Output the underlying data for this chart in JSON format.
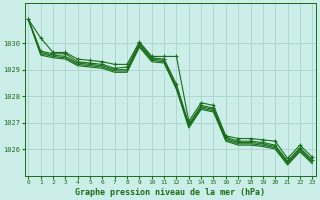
{
  "xlabel": "Graphe pression niveau de la mer (hPa)",
  "bg_color": "#cceee8",
  "grid_color": "#aad4ce",
  "line_color": "#1a6e1a",
  "ylim": [
    1025.0,
    1031.5
  ],
  "xlim": [
    0,
    23
  ],
  "yticks": [
    1026,
    1027,
    1028,
    1029,
    1030
  ],
  "xticks": [
    0,
    1,
    2,
    3,
    4,
    5,
    6,
    7,
    8,
    9,
    10,
    11,
    12,
    13,
    14,
    15,
    16,
    17,
    18,
    19,
    20,
    21,
    22,
    23
  ],
  "series": [
    [
      1030.9,
      1030.2,
      1029.65,
      1029.65,
      1029.4,
      1029.35,
      1029.3,
      1029.2,
      1029.2,
      1030.05,
      1029.5,
      1029.5,
      1029.5,
      1027.05,
      1027.75,
      1027.65,
      1026.5,
      1026.4,
      1026.4,
      1026.35,
      1026.3,
      1025.65,
      1026.15,
      1025.7
    ],
    [
      1030.9,
      1029.7,
      1029.6,
      1029.6,
      1029.3,
      1029.25,
      1029.2,
      1029.05,
      1029.1,
      1030.0,
      1029.45,
      1029.4,
      1028.45,
      1026.95,
      1027.65,
      1027.55,
      1026.45,
      1026.3,
      1026.3,
      1026.25,
      1026.15,
      1025.55,
      1026.05,
      1025.6
    ],
    [
      1030.9,
      1029.65,
      1029.55,
      1029.5,
      1029.25,
      1029.2,
      1029.15,
      1029.0,
      1029.0,
      1029.95,
      1029.4,
      1029.35,
      1028.35,
      1026.9,
      1027.6,
      1027.5,
      1026.4,
      1026.25,
      1026.25,
      1026.2,
      1026.1,
      1025.5,
      1026.0,
      1025.55
    ],
    [
      1030.9,
      1029.6,
      1029.5,
      1029.45,
      1029.2,
      1029.15,
      1029.1,
      1028.95,
      1028.95,
      1029.9,
      1029.35,
      1029.3,
      1028.3,
      1026.85,
      1027.55,
      1027.45,
      1026.35,
      1026.2,
      1026.2,
      1026.15,
      1026.05,
      1025.45,
      1025.95,
      1025.5
    ],
    [
      1030.9,
      1029.55,
      1029.45,
      1029.4,
      1029.15,
      1029.1,
      1029.05,
      1028.9,
      1028.9,
      1029.85,
      1029.3,
      1029.25,
      1028.25,
      1026.8,
      1027.5,
      1027.4,
      1026.3,
      1026.15,
      1026.15,
      1026.1,
      1026.0,
      1025.4,
      1025.9,
      1025.45
    ]
  ],
  "marker_series": [
    0,
    1
  ],
  "figsize": [
    3.2,
    2.0
  ],
  "dpi": 100
}
